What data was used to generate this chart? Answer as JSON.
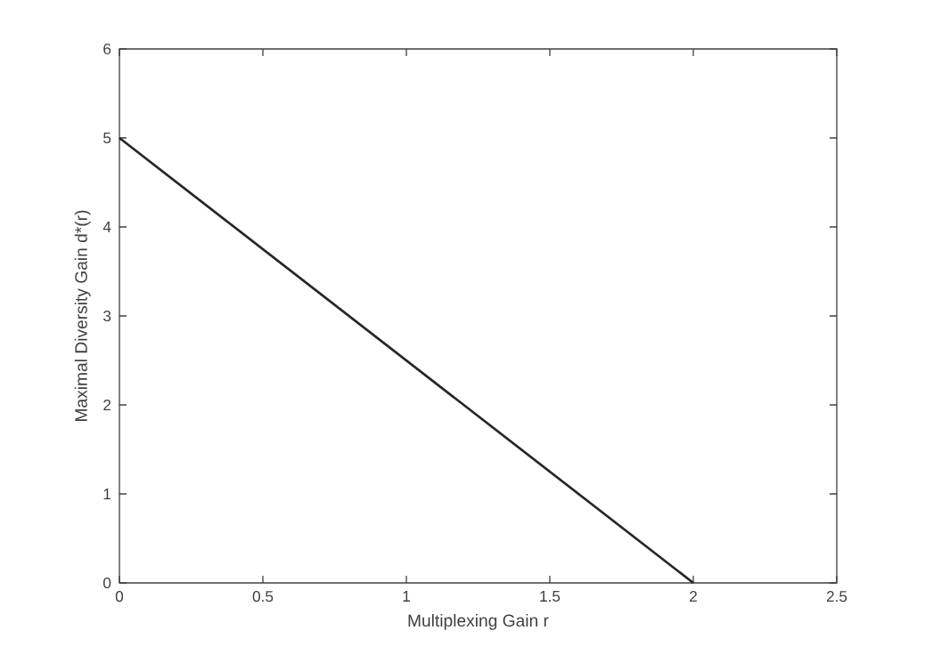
{
  "chart_data": {
    "type": "line",
    "xlabel": "Multiplexing Gain r",
    "ylabel": "Maximal Diversity Gain d*(r)",
    "x": [
      0,
      2
    ],
    "values": [
      5,
      0
    ],
    "color": "#262626",
    "line_style": "solid",
    "xlim": [
      0,
      2.5
    ],
    "ylim": [
      0,
      6
    ],
    "xticks": [
      0,
      0.5,
      1,
      1.5,
      2,
      2.5
    ],
    "yticks": [
      0,
      1,
      2,
      3,
      4,
      5,
      6
    ]
  }
}
